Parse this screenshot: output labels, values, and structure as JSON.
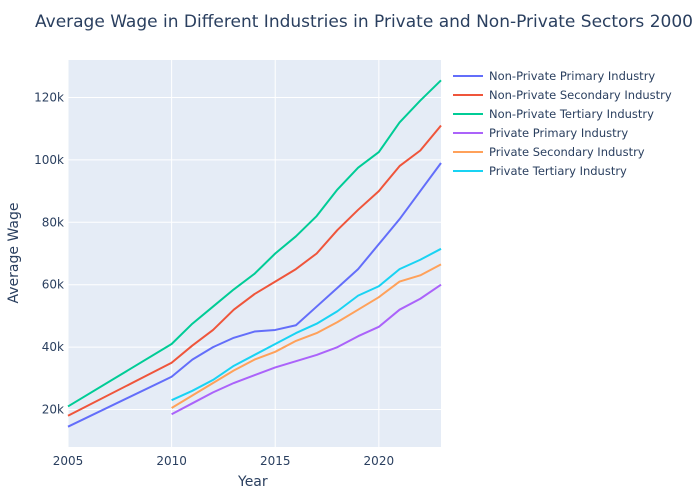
{
  "chart_data": {
    "type": "line",
    "title": "Average Wage in Different Industries in Private and Non-Private Sectors 2000",
    "xlabel": "Year",
    "ylabel": "Average Wage",
    "xlim": [
      2005,
      2023
    ],
    "ylim": [
      8000,
      132000
    ],
    "x_ticks": [
      2005,
      2010,
      2015,
      2020
    ],
    "y_ticks": [
      20000,
      40000,
      60000,
      80000,
      100000,
      120000
    ],
    "y_tick_labels": [
      "20k",
      "40k",
      "60k",
      "80k",
      "100k",
      "120k"
    ],
    "grid": true,
    "legend_position": "top-right outside",
    "series": [
      {
        "name": "Non-Private Primary Industry",
        "color": "#636efa",
        "x": [
          2005,
          2010,
          2011,
          2012,
          2013,
          2014,
          2015,
          2016,
          2017,
          2018,
          2019,
          2020,
          2021,
          2022,
          2023
        ],
        "values": [
          14500,
          30500,
          36000,
          40000,
          43000,
          45000,
          45500,
          47000,
          53000,
          59000,
          65000,
          73000,
          81000,
          90000,
          99000
        ]
      },
      {
        "name": "Non-Private Secondary Industry",
        "color": "#ef553b",
        "x": [
          2005,
          2010,
          2011,
          2012,
          2013,
          2014,
          2015,
          2016,
          2017,
          2018,
          2019,
          2020,
          2021,
          2022,
          2023
        ],
        "values": [
          18000,
          35000,
          40500,
          45500,
          52000,
          57000,
          61000,
          65000,
          70000,
          77500,
          84000,
          90000,
          98000,
          103000,
          111000
        ]
      },
      {
        "name": "Non-Private Tertiary Industry",
        "color": "#00cc96",
        "x": [
          2005,
          2010,
          2011,
          2012,
          2013,
          2014,
          2015,
          2016,
          2017,
          2018,
          2019,
          2020,
          2021,
          2022,
          2023
        ],
        "values": [
          21000,
          41000,
          47500,
          53000,
          58500,
          63500,
          70000,
          75500,
          82000,
          90500,
          97500,
          102500,
          112000,
          119000,
          125500
        ]
      },
      {
        "name": "Private Primary Industry",
        "color": "#ab63fa",
        "x": [
          2010,
          2011,
          2012,
          2013,
          2014,
          2015,
          2016,
          2017,
          2018,
          2019,
          2020,
          2021,
          2022,
          2023
        ],
        "values": [
          18500,
          22000,
          25500,
          28500,
          31000,
          33500,
          35500,
          37500,
          40000,
          43500,
          46500,
          52000,
          55500,
          60000
        ]
      },
      {
        "name": "Private Secondary Industry",
        "color": "#ffa15a",
        "x": [
          2010,
          2011,
          2012,
          2013,
          2014,
          2015,
          2016,
          2017,
          2018,
          2019,
          2020,
          2021,
          2022,
          2023
        ],
        "values": [
          20500,
          24500,
          28500,
          32500,
          36000,
          38500,
          42000,
          44500,
          48000,
          52000,
          56000,
          61000,
          63000,
          66500
        ]
      },
      {
        "name": "Private Tertiary Industry",
        "color": "#19d3f3",
        "x": [
          2010,
          2011,
          2012,
          2013,
          2014,
          2015,
          2016,
          2017,
          2018,
          2019,
          2020,
          2021,
          2022,
          2023
        ],
        "values": [
          23000,
          26000,
          29500,
          34000,
          37500,
          41000,
          44500,
          47500,
          51500,
          56500,
          59500,
          65000,
          68000,
          71500
        ]
      }
    ]
  }
}
